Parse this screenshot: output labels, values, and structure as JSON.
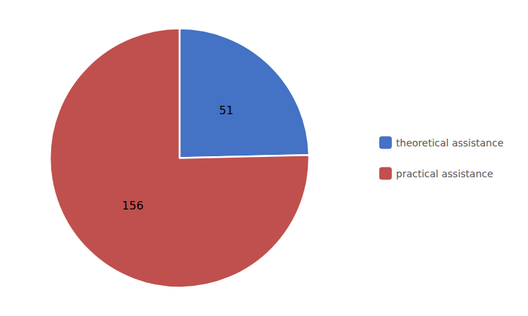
{
  "chart_data": {
    "type": "pie",
    "categories": [
      "theoretical assistance",
      "practical assistance"
    ],
    "values": [
      51,
      156
    ],
    "colors": [
      "#4472C4",
      "#C0504D"
    ],
    "data_labels": true,
    "legend": "right"
  }
}
